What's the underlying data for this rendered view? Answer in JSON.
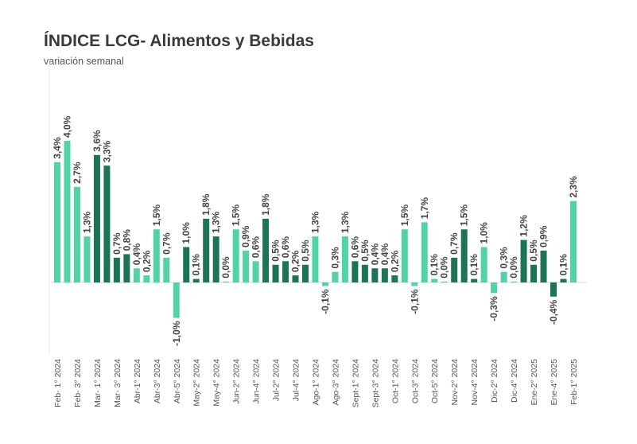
{
  "chart_data": {
    "type": "bar",
    "title": "ÍNDICE LCG- Alimentos y Bebidas",
    "subtitle": "variación semanal",
    "values": [
      3.4,
      4.0,
      2.7,
      1.3,
      3.6,
      3.3,
      0.7,
      0.8,
      0.4,
      0.2,
      1.5,
      0.7,
      -1.0,
      1.0,
      0.1,
      1.8,
      1.3,
      0.0,
      1.5,
      0.9,
      0.6,
      1.8,
      0.5,
      0.6,
      0.2,
      0.5,
      1.3,
      -0.1,
      0.3,
      1.3,
      0.6,
      0.5,
      0.4,
      0.4,
      0.2,
      1.5,
      -0.1,
      1.7,
      0.1,
      0.0,
      0.7,
      1.5,
      0.1,
      1.0,
      -0.3,
      0.3,
      0.0,
      1.2,
      0.5,
      0.9,
      -0.4,
      0.1,
      2.3
    ],
    "data_labels": [
      "3,4%",
      "4,0%",
      "2,7%",
      "1,3%",
      "3,6%",
      "3,3%",
      "0,7%",
      "0,8%",
      "0,4%",
      "0,2%",
      "1,5%",
      "0,7%",
      "-1,0%",
      "1,0%",
      "0,1%",
      "1,8%",
      "1,3%",
      "0,0%",
      "1,5%",
      "0,9%",
      "0,6%",
      "1,8%",
      "0,5%",
      "0,6%",
      "0,2%",
      "0,5%",
      "1,3%",
      "-0,1%",
      "0,3%",
      "1,3%",
      "0,6%",
      "0,5%",
      "0,4%",
      "0,4%",
      "0,2%",
      "1,5%",
      "-0,1%",
      "1,7%",
      "0,1%",
      "0,0%",
      "0,7%",
      "1,5%",
      "0,1%",
      "1,0%",
      "-0,3%",
      "0,3%",
      "0,0%",
      "1,2%",
      "0,5%",
      "0,9%",
      "-0,4%",
      "0,1%",
      "2,3%"
    ],
    "shade": [
      "l",
      "l",
      "l",
      "l",
      "d",
      "d",
      "d",
      "d",
      "l",
      "l",
      "l",
      "l",
      "l",
      "d",
      "d",
      "d",
      "d",
      "l",
      "l",
      "l",
      "l",
      "d",
      "d",
      "d",
      "d",
      "d",
      "l",
      "l",
      "l",
      "l",
      "d",
      "d",
      "d",
      "d",
      "d",
      "l",
      "l",
      "l",
      "l",
      "l",
      "d",
      "d",
      "d",
      "l",
      "l",
      "l",
      "l",
      "d",
      "d",
      "d",
      "d",
      "d",
      "l"
    ],
    "tick_labels": [
      "Feb- 1° 2024",
      "Feb- 3° 2024",
      "Mar- 1° 2024",
      "Mar- 3° 2024",
      "Abr-1° 2024",
      "Abr-3° 2024",
      "Abr-5° 2024",
      "May-2° 2024",
      "May-4° 2024",
      "Jun-2° 2024",
      "Jun-4° 2024",
      "Jul-2° 2024",
      "Jul-4° 2024",
      "Ago-1° 2024",
      "Ago-3° 2024",
      "Sept-1° 2024",
      "Sept-3° 2024",
      "Oct-1° 2024",
      "Oct-3° 2024",
      "Oct-5° 2024",
      "Nov-2° 2024",
      "Nov-4° 2024",
      "Dic-2° 2024",
      "Dic-4° 2024",
      "Ene-2° 2025",
      "Ene-4° 2025",
      "Feb-1° 2025"
    ],
    "colors": {
      "light": "#52d3a6",
      "dark": "#1b7555",
      "text": "#444444"
    },
    "grid": false,
    "ylim": [
      -1.5,
      4.5
    ]
  }
}
